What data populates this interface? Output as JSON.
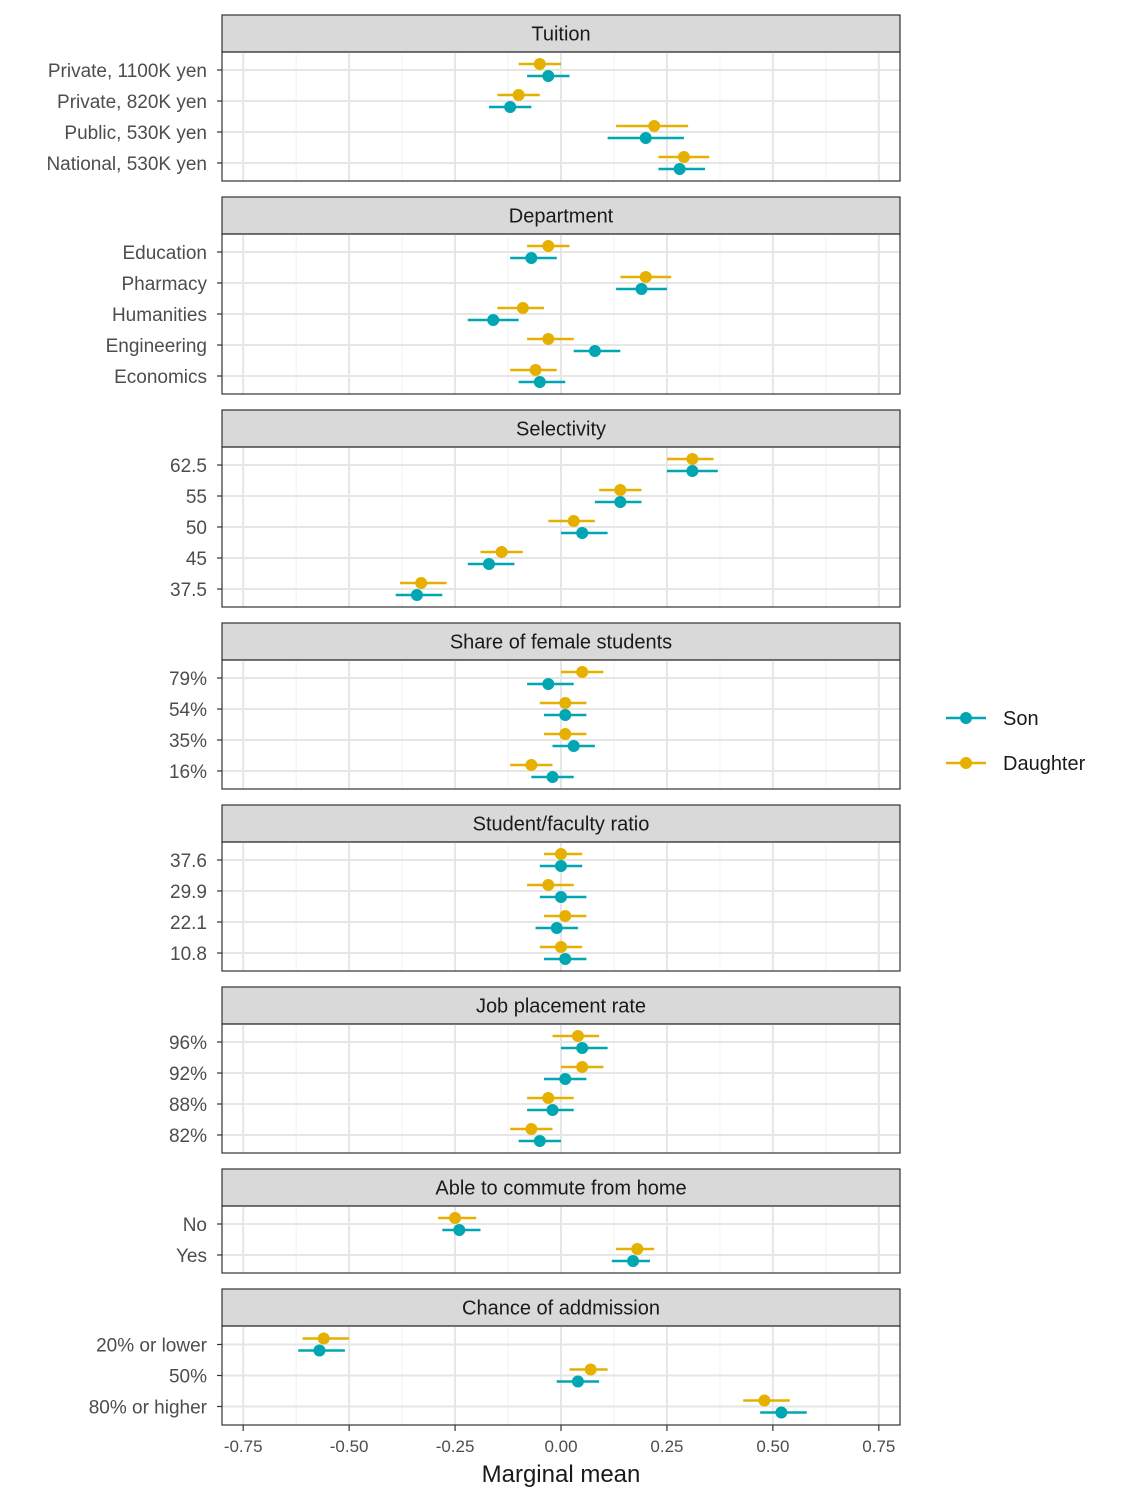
{
  "chart_data": {
    "type": "scatter",
    "subtype": "dot-and-whisker (faceted)",
    "xlabel": "Marginal mean",
    "xlim": [
      -0.8,
      0.8
    ],
    "xticks": [
      -0.75,
      -0.5,
      -0.25,
      0.0,
      0.25,
      0.5,
      0.75
    ],
    "xtick_labels": [
      "-0.75",
      "-0.50",
      "-0.25",
      "0.00",
      "0.25",
      "0.50",
      "0.75"
    ],
    "grid": true,
    "legend": {
      "position": "right",
      "entries": [
        {
          "name": "Son",
          "color": "#00A6B2"
        },
        {
          "name": "Daughter",
          "color": "#E6B000"
        }
      ]
    },
    "facets": [
      {
        "title": "Tuition",
        "levels": [
          "Private, 1100K yen",
          "Private, 820K yen",
          "Public, 530K yen",
          "National, 530K yen"
        ],
        "son": [
          [
            -0.03,
            -0.08,
            0.02
          ],
          [
            -0.12,
            -0.17,
            -0.07
          ],
          [
            0.2,
            0.11,
            0.29
          ],
          [
            0.28,
            0.23,
            0.34
          ]
        ],
        "daughter": [
          [
            -0.05,
            -0.1,
            0.0
          ],
          [
            -0.1,
            -0.15,
            -0.05
          ],
          [
            0.22,
            0.13,
            0.3
          ],
          [
            0.29,
            0.23,
            0.35
          ]
        ]
      },
      {
        "title": "Department",
        "levels": [
          "Education",
          "Pharmacy",
          "Humanities",
          "Engineering",
          "Economics"
        ],
        "son": [
          [
            -0.07,
            -0.12,
            -0.01
          ],
          [
            0.19,
            0.13,
            0.25
          ],
          [
            -0.16,
            -0.22,
            -0.1
          ],
          [
            0.08,
            0.03,
            0.14
          ],
          [
            -0.05,
            -0.1,
            0.01
          ]
        ],
        "daughter": [
          [
            -0.03,
            -0.08,
            0.02
          ],
          [
            0.2,
            0.14,
            0.26
          ],
          [
            -0.09,
            -0.15,
            -0.04
          ],
          [
            -0.03,
            -0.08,
            0.03
          ],
          [
            -0.06,
            -0.12,
            -0.01
          ]
        ]
      },
      {
        "title": "Selectivity",
        "levels": [
          "62.5",
          "55",
          "50",
          "45",
          "37.5"
        ],
        "son": [
          [
            0.31,
            0.25,
            0.37
          ],
          [
            0.14,
            0.08,
            0.19
          ],
          [
            0.05,
            0.0,
            0.11
          ],
          [
            -0.17,
            -0.22,
            -0.11
          ],
          [
            -0.34,
            -0.39,
            -0.28
          ]
        ],
        "daughter": [
          [
            0.31,
            0.25,
            0.36
          ],
          [
            0.14,
            0.09,
            0.19
          ],
          [
            0.03,
            -0.03,
            0.08
          ],
          [
            -0.14,
            -0.19,
            -0.09
          ],
          [
            -0.33,
            -0.38,
            -0.27
          ]
        ]
      },
      {
        "title": "Share of female students",
        "levels": [
          "79%",
          "54%",
          "35%",
          "16%"
        ],
        "son": [
          [
            -0.03,
            -0.08,
            0.03
          ],
          [
            0.01,
            -0.04,
            0.06
          ],
          [
            0.03,
            -0.02,
            0.08
          ],
          [
            -0.02,
            -0.07,
            0.03
          ]
        ],
        "daughter": [
          [
            0.05,
            0.0,
            0.1
          ],
          [
            0.01,
            -0.05,
            0.06
          ],
          [
            0.01,
            -0.04,
            0.06
          ],
          [
            -0.07,
            -0.12,
            -0.02
          ]
        ]
      },
      {
        "title": "Student/faculty ratio",
        "levels": [
          "37.6",
          "29.9",
          "22.1",
          "10.8"
        ],
        "son": [
          [
            0.0,
            -0.05,
            0.05
          ],
          [
            0.0,
            -0.05,
            0.06
          ],
          [
            -0.01,
            -0.06,
            0.04
          ],
          [
            0.01,
            -0.04,
            0.06
          ]
        ],
        "daughter": [
          [
            0.0,
            -0.04,
            0.05
          ],
          [
            -0.03,
            -0.08,
            0.03
          ],
          [
            0.01,
            -0.04,
            0.06
          ],
          [
            0.0,
            -0.05,
            0.05
          ]
        ]
      },
      {
        "title": "Job placement rate",
        "levels": [
          "96%",
          "92%",
          "88%",
          "82%"
        ],
        "son": [
          [
            0.05,
            0.0,
            0.11
          ],
          [
            0.01,
            -0.04,
            0.06
          ],
          [
            -0.02,
            -0.08,
            0.03
          ],
          [
            -0.05,
            -0.1,
            0.0
          ]
        ],
        "daughter": [
          [
            0.04,
            -0.02,
            0.09
          ],
          [
            0.05,
            0.0,
            0.1
          ],
          [
            -0.03,
            -0.08,
            0.03
          ],
          [
            -0.07,
            -0.12,
            -0.02
          ]
        ]
      },
      {
        "title": "Able to commute from home",
        "levels": [
          "No",
          "Yes"
        ],
        "son": [
          [
            -0.24,
            -0.28,
            -0.19
          ],
          [
            0.17,
            0.12,
            0.21
          ]
        ],
        "daughter": [
          [
            -0.25,
            -0.29,
            -0.2
          ],
          [
            0.18,
            0.13,
            0.22
          ]
        ]
      },
      {
        "title": "Chance of addmission",
        "levels": [
          "20% or lower",
          "50%",
          "80% or higher"
        ],
        "son": [
          [
            -0.57,
            -0.62,
            -0.51
          ],
          [
            0.04,
            -0.01,
            0.09
          ],
          [
            0.52,
            0.47,
            0.58
          ]
        ],
        "daughter": [
          [
            -0.56,
            -0.61,
            -0.5
          ],
          [
            0.07,
            0.02,
            0.11
          ],
          [
            0.48,
            0.43,
            0.54
          ]
        ]
      }
    ]
  }
}
